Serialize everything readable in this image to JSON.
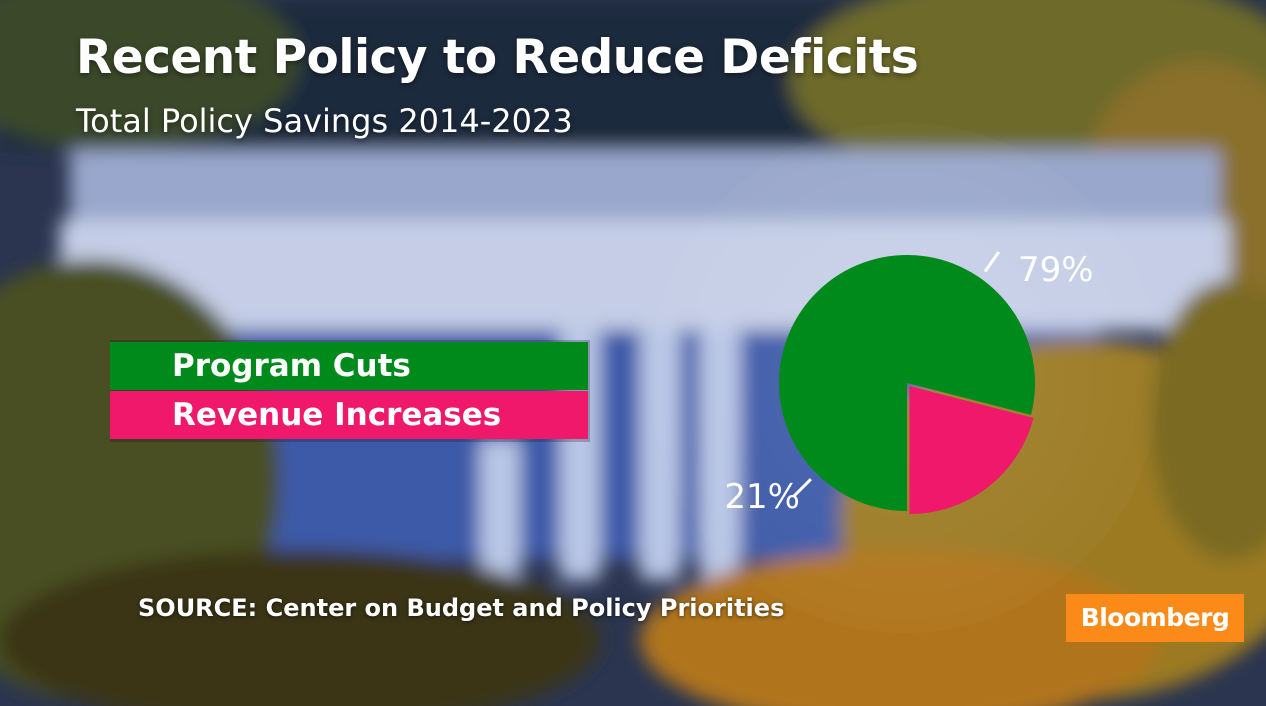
{
  "title": "Recent Policy to Reduce Deficits",
  "subtitle": "Total Policy Savings 2014-2023",
  "source": "SOURCE: Center on Budget and Policy Priorities",
  "brand": {
    "name": "Bloomberg",
    "color": "#fb8a19"
  },
  "chart_data": {
    "type": "pie",
    "title": "Recent Policy to Reduce Deficits",
    "subtitle": "Total Policy Savings 2014-2023",
    "legend_position": "left",
    "slices": [
      {
        "name": "Program Cuts",
        "value": 79,
        "label": "79%",
        "color": "#008a1c"
      },
      {
        "name": "Revenue Increases",
        "value": 21,
        "label": "21%",
        "color": "#f0186a"
      }
    ]
  }
}
